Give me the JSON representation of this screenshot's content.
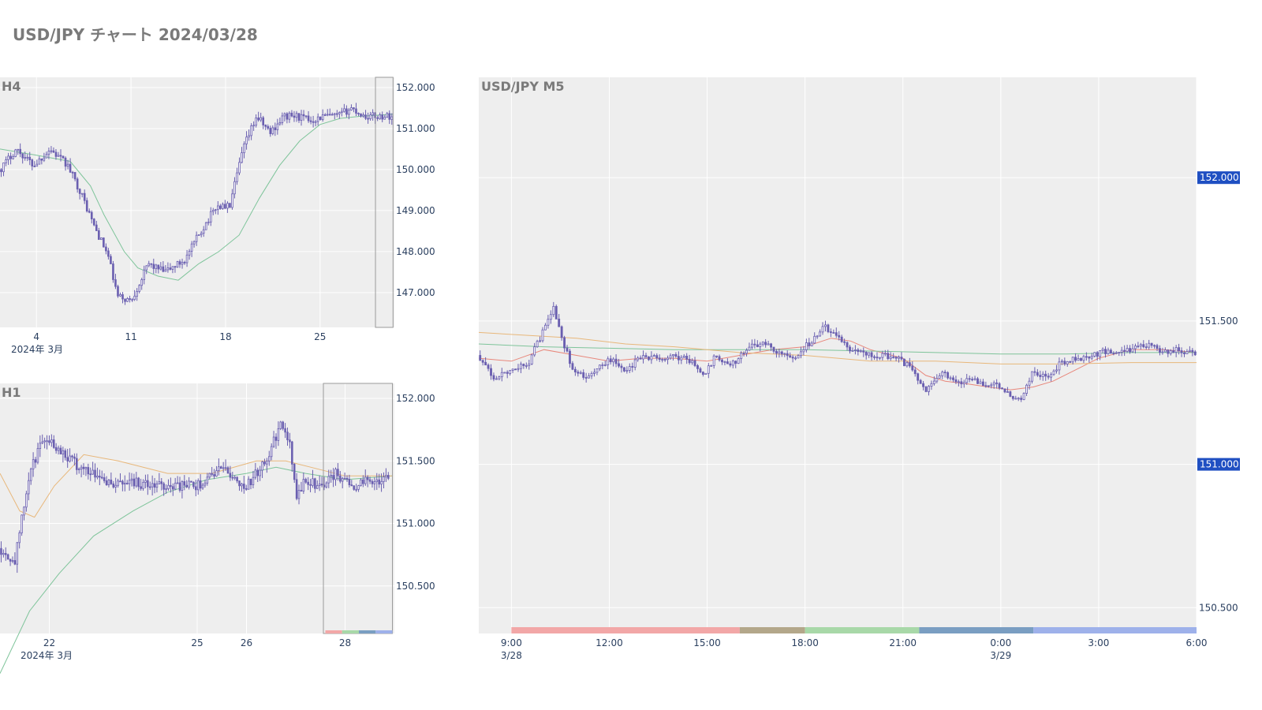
{
  "page": {
    "title": "USD/JPY チャート 2024/03/28"
  },
  "colors": {
    "plot_bg": "#eeeeee",
    "grid": "#ffffff",
    "candle": "#6a5fb0",
    "ma_short": "#e8877b",
    "ma_mid": "#7ec49a",
    "ma_long": "#e8b77a",
    "badge": "#1f4fc2"
  },
  "chart_data": [
    {
      "id": "h4",
      "type": "candlestick",
      "title": "H4",
      "x_ticks": [
        {
          "label": "4",
          "x": 4
        },
        {
          "label": "11",
          "x": 11
        },
        {
          "label": "18",
          "x": 18
        },
        {
          "label": "25",
          "x": 25
        }
      ],
      "x_sublabel": "2024年 3月",
      "xlim": [
        1.3,
        30.5
      ],
      "y_ticks": [
        152.0,
        151.0,
        150.0,
        149.0,
        148.0,
        147.0
      ],
      "y_tick_labels": [
        "152.000",
        "151.000",
        "150.000",
        "149.000",
        "148.000",
        "147.000"
      ],
      "ylim": [
        146.15,
        152.25
      ],
      "highlight_range": [
        29.1,
        30.4
      ],
      "candle_anchors": [
        [
          1.3,
          150.0
        ],
        [
          2.5,
          150.5
        ],
        [
          3.8,
          150.1
        ],
        [
          5.0,
          150.5
        ],
        [
          6.3,
          150.1
        ],
        [
          7.2,
          149.5
        ],
        [
          8.3,
          148.6
        ],
        [
          9.3,
          147.9
        ],
        [
          10.0,
          146.9
        ],
        [
          11.0,
          146.8
        ],
        [
          12.3,
          147.7
        ],
        [
          13.5,
          147.5
        ],
        [
          15.0,
          147.8
        ],
        [
          16.0,
          148.4
        ],
        [
          17.3,
          149.1
        ],
        [
          18.3,
          149.1
        ],
        [
          19.3,
          150.5
        ],
        [
          20.3,
          151.3
        ],
        [
          21.3,
          150.9
        ],
        [
          22.3,
          151.3
        ],
        [
          23.3,
          151.3
        ],
        [
          24.3,
          151.2
        ],
        [
          25.3,
          151.3
        ],
        [
          26.3,
          151.3
        ],
        [
          27.3,
          151.5
        ],
        [
          28.3,
          151.3
        ],
        [
          29.3,
          151.3
        ],
        [
          30.4,
          151.3
        ]
      ],
      "ma_mid": [
        [
          1.3,
          150.5
        ],
        [
          4,
          150.35
        ],
        [
          6.5,
          150.2
        ],
        [
          8,
          149.6
        ],
        [
          9,
          148.9
        ],
        [
          10.5,
          148.0
        ],
        [
          11.5,
          147.6
        ],
        [
          13,
          147.4
        ],
        [
          14.5,
          147.3
        ],
        [
          16,
          147.7
        ],
        [
          17.5,
          148.0
        ],
        [
          19,
          148.4
        ],
        [
          20.5,
          149.3
        ],
        [
          22,
          150.1
        ],
        [
          23.5,
          150.7
        ],
        [
          25,
          151.1
        ],
        [
          26.5,
          151.25
        ],
        [
          28,
          151.3
        ],
        [
          30.4,
          151.35
        ]
      ]
    },
    {
      "id": "h1",
      "type": "candlestick",
      "title": "H1",
      "x_ticks": [
        {
          "label": "22",
          "x": 22
        },
        {
          "label": "25",
          "x": 25
        },
        {
          "label": "26",
          "x": 26
        },
        {
          "label": "28",
          "x": 28
        }
      ],
      "x_sublabel": "2024年 3月",
      "xlim": [
        21.0,
        29.0
      ],
      "y_ticks": [
        152.0,
        151.5,
        151.0,
        150.5
      ],
      "y_tick_labels": [
        "152.000",
        "151.500",
        "151.000",
        "150.500"
      ],
      "ylim": [
        150.12,
        152.12
      ],
      "highlight_range": [
        27.56,
        28.96
      ],
      "session_bar_range": [
        27.6,
        28.96
      ],
      "candle_anchors": [
        [
          21.0,
          150.8
        ],
        [
          21.3,
          150.7
        ],
        [
          21.6,
          151.4
        ],
        [
          21.9,
          151.7
        ],
        [
          22.2,
          151.6
        ],
        [
          22.6,
          151.45
        ],
        [
          23.0,
          151.4
        ],
        [
          23.3,
          151.3
        ],
        [
          23.6,
          151.35
        ],
        [
          24.0,
          151.3
        ],
        [
          25.0,
          151.3
        ],
        [
          25.5,
          151.45
        ],
        [
          25.8,
          151.35
        ],
        [
          26.0,
          151.3
        ],
        [
          26.4,
          151.5
        ],
        [
          26.7,
          151.8
        ],
        [
          26.9,
          151.6
        ],
        [
          27.0,
          151.2
        ],
        [
          27.2,
          151.35
        ],
        [
          27.5,
          151.3
        ],
        [
          27.8,
          151.4
        ],
        [
          28.2,
          151.3
        ],
        [
          28.5,
          151.35
        ],
        [
          28.9,
          151.35
        ]
      ],
      "ma_mid": [
        [
          21.0,
          149.8
        ],
        [
          21.6,
          150.3
        ],
        [
          22.2,
          150.6
        ],
        [
          22.9,
          150.9
        ],
        [
          23.7,
          151.1
        ],
        [
          24.4,
          151.25
        ],
        [
          25.2,
          151.35
        ],
        [
          26.0,
          151.4
        ],
        [
          26.6,
          151.45
        ],
        [
          27.2,
          151.4
        ],
        [
          28.0,
          151.35
        ],
        [
          28.96,
          151.38
        ]
      ],
      "ma_long": [
        [
          21.0,
          151.4
        ],
        [
          21.4,
          151.1
        ],
        [
          21.7,
          151.05
        ],
        [
          22.1,
          151.3
        ],
        [
          22.7,
          151.55
        ],
        [
          23.4,
          151.5
        ],
        [
          24.4,
          151.4
        ],
        [
          25.3,
          151.4
        ],
        [
          26.2,
          151.5
        ],
        [
          26.8,
          151.5
        ],
        [
          27.3,
          151.45
        ],
        [
          28.0,
          151.38
        ],
        [
          28.96,
          151.38
        ]
      ]
    },
    {
      "id": "m5",
      "type": "candlestick",
      "title": "USD/JPY M5",
      "x_ticks": [
        {
          "label": "9:00",
          "sublabel": "3/28",
          "x": 9
        },
        {
          "label": "12:00",
          "x": 12
        },
        {
          "label": "15:00",
          "x": 15
        },
        {
          "label": "18:00",
          "x": 18
        },
        {
          "label": "21:00",
          "x": 21
        },
        {
          "label": "0:00",
          "sublabel": "3/29",
          "x": 24
        },
        {
          "label": "3:00",
          "x": 27
        },
        {
          "label": "6:00",
          "x": 30
        }
      ],
      "xlim": [
        8.0,
        30.0
      ],
      "y_ticks": [
        151.5
      ],
      "y_tick_labels": [
        "151.500"
      ],
      "y_badges": [
        {
          "value": 152.0,
          "label": "152.000"
        },
        {
          "value": 151.0,
          "label": "151.000"
        }
      ],
      "y_edge_label": {
        "value": 150.5,
        "label": "150.500"
      },
      "ylim": [
        150.41,
        152.35
      ],
      "session_bands": [
        {
          "start": 9.0,
          "end": 16.0,
          "color": "#f2a7a7"
        },
        {
          "start": 16.0,
          "end": 18.0,
          "color": "#b3a78a"
        },
        {
          "start": 18.0,
          "end": 21.5,
          "color": "#a8d8a8"
        },
        {
          "start": 21.5,
          "end": 25.0,
          "color": "#7a9ec2"
        },
        {
          "start": 25.0,
          "end": 30.0,
          "color": "#9eb1ea"
        }
      ],
      "candle_anchors": [
        [
          8.0,
          151.38
        ],
        [
          8.5,
          151.3
        ],
        [
          9.0,
          151.33
        ],
        [
          9.5,
          151.35
        ],
        [
          10.0,
          151.47
        ],
        [
          10.3,
          151.55
        ],
        [
          10.6,
          151.42
        ],
        [
          10.9,
          151.33
        ],
        [
          11.4,
          151.3
        ],
        [
          12.0,
          151.37
        ],
        [
          12.5,
          151.32
        ],
        [
          13.0,
          151.38
        ],
        [
          13.5,
          151.37
        ],
        [
          14.0,
          151.38
        ],
        [
          14.5,
          151.36
        ],
        [
          14.9,
          151.3
        ],
        [
          15.2,
          151.37
        ],
        [
          15.8,
          151.35
        ],
        [
          16.2,
          151.4
        ],
        [
          16.7,
          151.43
        ],
        [
          17.3,
          151.38
        ],
        [
          17.7,
          151.38
        ],
        [
          18.2,
          151.43
        ],
        [
          18.6,
          151.48
        ],
        [
          19.0,
          151.45
        ],
        [
          19.3,
          151.4
        ],
        [
          19.8,
          151.39
        ],
        [
          20.3,
          151.38
        ],
        [
          20.8,
          151.37
        ],
        [
          21.3,
          151.33
        ],
        [
          21.7,
          151.25
        ],
        [
          22.2,
          151.32
        ],
        [
          22.6,
          151.28
        ],
        [
          23.0,
          151.3
        ],
        [
          23.5,
          151.28
        ],
        [
          24.0,
          151.27
        ],
        [
          24.6,
          151.22
        ],
        [
          25.0,
          151.33
        ],
        [
          25.4,
          151.3
        ],
        [
          25.8,
          151.35
        ],
        [
          26.3,
          151.37
        ],
        [
          26.8,
          151.38
        ],
        [
          27.3,
          151.4
        ],
        [
          27.8,
          151.39
        ],
        [
          28.4,
          151.42
        ],
        [
          29.0,
          151.39
        ],
        [
          29.5,
          151.4
        ],
        [
          30.0,
          151.38
        ]
      ],
      "ma_short": [
        [
          8.0,
          151.37
        ],
        [
          9.0,
          151.36
        ],
        [
          10.0,
          151.4
        ],
        [
          11.0,
          151.38
        ],
        [
          12.0,
          151.36
        ],
        [
          13.0,
          151.37
        ],
        [
          14.0,
          151.37
        ],
        [
          15.0,
          151.36
        ],
        [
          16.0,
          151.38
        ],
        [
          17.0,
          151.4
        ],
        [
          18.0,
          151.41
        ],
        [
          18.8,
          151.44
        ],
        [
          19.4,
          151.43
        ],
        [
          20.0,
          151.4
        ],
        [
          21.0,
          151.37
        ],
        [
          21.7,
          151.31
        ],
        [
          22.3,
          151.29
        ],
        [
          23.0,
          151.28
        ],
        [
          23.6,
          151.27
        ],
        [
          24.3,
          151.26
        ],
        [
          25.0,
          151.27
        ],
        [
          25.6,
          151.29
        ],
        [
          26.3,
          151.33
        ],
        [
          27.0,
          151.37
        ],
        [
          28.0,
          151.4
        ],
        [
          29.0,
          151.4
        ],
        [
          30.0,
          151.39
        ]
      ],
      "ma_mid": [
        [
          8.0,
          151.42
        ],
        [
          10.0,
          151.41
        ],
        [
          12.0,
          151.405
        ],
        [
          14.0,
          151.4
        ],
        [
          16.0,
          151.4
        ],
        [
          18.0,
          151.4
        ],
        [
          20.0,
          151.395
        ],
        [
          22.0,
          151.39
        ],
        [
          24.0,
          151.385
        ],
        [
          26.0,
          151.385
        ],
        [
          28.0,
          151.39
        ],
        [
          30.0,
          151.39
        ]
      ],
      "ma_long": [
        [
          8.0,
          151.46
        ],
        [
          9.5,
          151.45
        ],
        [
          11.0,
          151.44
        ],
        [
          12.5,
          151.42
        ],
        [
          14.0,
          151.41
        ],
        [
          16.0,
          151.39
        ],
        [
          18.0,
          151.38
        ],
        [
          20.0,
          151.36
        ],
        [
          22.0,
          151.36
        ],
        [
          24.0,
          151.35
        ],
        [
          26.0,
          151.35
        ],
        [
          28.0,
          151.355
        ],
        [
          30.0,
          151.355
        ]
      ]
    }
  ]
}
